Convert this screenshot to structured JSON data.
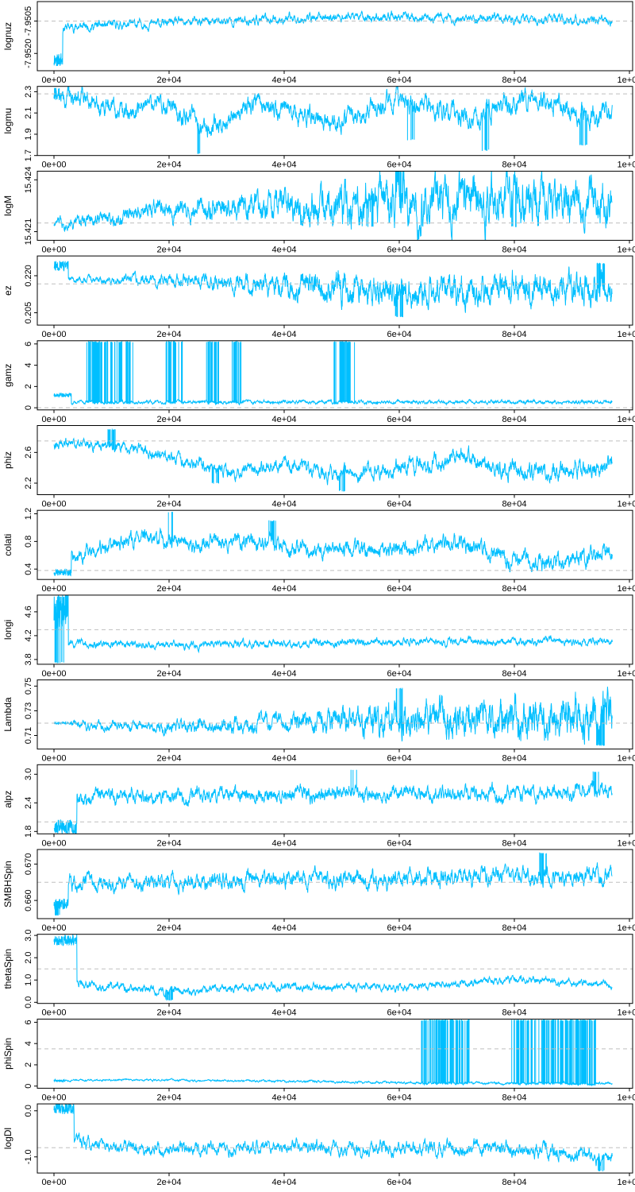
{
  "colors": {
    "trace": "#00bfff",
    "reference": "#bfbfbf",
    "frame": "#000000"
  },
  "x_axis": {
    "range": [
      0,
      97000
    ],
    "ticks": [
      0,
      20000,
      40000,
      60000,
      80000,
      100000
    ],
    "tick_labels": [
      "0e+00",
      "2e+04",
      "4e+04",
      "6e+04",
      "8e+04",
      "1e+05"
    ]
  },
  "chart_data": [
    {
      "type": "line",
      "ylabel": "lognuz",
      "ylim": [
        -7.9528,
        -7.9496
      ],
      "yticks": [
        -7.952,
        -7.9505
      ],
      "ytick_labels": [
        "-7.9520",
        "-7.9505"
      ],
      "reference": -7.9505,
      "warmup": {
        "end": 1500,
        "start": -7.9523,
        "amp": 0.0003
      },
      "seed": 11,
      "levels": [
        [
          0,
          -7.9508
        ],
        [
          30000,
          -7.9505
        ],
        [
          50000,
          -7.9503
        ],
        [
          97000,
          -7.9505
        ]
      ],
      "amp": [
        [
          0,
          0.0002
        ],
        [
          97000,
          0.0002
        ]
      ],
      "low": [],
      "high": []
    },
    {
      "type": "line",
      "ylabel": "logmu",
      "ylim": [
        1.7,
        2.35
      ],
      "yticks": [
        1.7,
        1.9,
        2.1,
        2.3
      ],
      "ytick_labels": [
        "1.7",
        "1.9",
        "2.1",
        "2.3"
      ],
      "reference": 2.28,
      "warmup": null,
      "seed": 22,
      "levels": [
        [
          0,
          2.26
        ],
        [
          6000,
          2.26
        ],
        [
          12000,
          2.1
        ],
        [
          18000,
          2.2
        ],
        [
          27000,
          1.95
        ],
        [
          35000,
          2.2
        ],
        [
          50000,
          2.0
        ],
        [
          60000,
          2.25
        ],
        [
          72000,
          2.05
        ],
        [
          82000,
          2.25
        ],
        [
          92000,
          2.1
        ],
        [
          97000,
          2.05
        ]
      ],
      "amp": [
        [
          0,
          0.08
        ],
        [
          97000,
          0.1
        ]
      ],
      "low": [
        [
          25000,
          1.72,
          0.03
        ],
        [
          62000,
          1.85,
          0.02
        ],
        [
          75000,
          1.75,
          0.03
        ],
        [
          92000,
          1.8,
          0.02
        ]
      ],
      "high": [
        [
          0,
          2.33,
          0.3
        ]
      ]
    },
    {
      "type": "line",
      "ylabel": "logM",
      "ylim": [
        15.4205,
        15.4245
      ],
      "yticks": [
        15.421,
        15.424
      ],
      "ytick_labels": [
        "15.421",
        "15.424"
      ],
      "reference": 15.4215,
      "warmup": null,
      "seed": 33,
      "levels": [
        [
          0,
          15.4215
        ],
        [
          20000,
          15.4222
        ],
        [
          40000,
          15.4225
        ],
        [
          60000,
          15.4228
        ],
        [
          97000,
          15.4226
        ]
      ],
      "amp": [
        [
          0,
          0.0003
        ],
        [
          40000,
          0.0008
        ],
        [
          60000,
          0.0014
        ],
        [
          97000,
          0.0012
        ]
      ],
      "low": [
        [
          55000,
          15.4213,
          0.06
        ],
        [
          80000,
          15.4213,
          0.06
        ]
      ],
      "high": [
        [
          60000,
          15.4245,
          0.04
        ]
      ]
    },
    {
      "type": "line",
      "ylabel": "ez",
      "ylim": [
        0.2,
        0.228
      ],
      "yticks": [
        0.205,
        0.22
      ],
      "ytick_labels": [
        "0.205",
        "0.220"
      ],
      "reference": 0.2167,
      "warmup": {
        "end": 2500,
        "start": 0.224,
        "amp": 0.002
      },
      "seed": 44,
      "levels": [
        [
          0,
          0.2185
        ],
        [
          20000,
          0.218
        ],
        [
          40000,
          0.2155
        ],
        [
          60000,
          0.2145
        ],
        [
          97000,
          0.215
        ]
      ],
      "amp": [
        [
          0,
          0.001
        ],
        [
          30000,
          0.003
        ],
        [
          50000,
          0.006
        ],
        [
          97000,
          0.006
        ]
      ],
      "low": [
        [
          60000,
          0.2035,
          0.05
        ]
      ],
      "high": [
        [
          95000,
          0.225,
          0.05
        ]
      ]
    },
    {
      "type": "line",
      "ylabel": "gamz",
      "ylim": [
        -0.2,
        6.3
      ],
      "yticks": [
        0,
        2,
        4,
        6
      ],
      "ytick_labels": [
        "0",
        "2",
        "4",
        "6"
      ],
      "reference": 0,
      "warmup": {
        "end": 3000,
        "start": 1.2,
        "amp": 0.2
      },
      "seed": 55,
      "levels": [
        [
          0,
          0.5
        ],
        [
          97000,
          0.55
        ]
      ],
      "amp": [
        [
          0,
          0.15
        ],
        [
          97000,
          0.15
        ]
      ],
      "low": [],
      "high": [
        [
          7000,
          6.2,
          0.5
        ],
        [
          8000,
          6.2,
          0.5
        ],
        [
          10500,
          6.2,
          0.5
        ],
        [
          12500,
          6.2,
          0.5
        ],
        [
          20000,
          6.2,
          0.5
        ],
        [
          21000,
          6.2,
          0.5
        ],
        [
          27500,
          6.2,
          0.4
        ],
        [
          32000,
          6.2,
          0.3
        ],
        [
          50000,
          6.2,
          0.5
        ],
        [
          51000,
          6.2,
          0.5
        ]
      ]
    },
    {
      "type": "line",
      "ylabel": "phiz",
      "ylim": [
        2.05,
        2.95
      ],
      "yticks": [
        2.2,
        2.6
      ],
      "ytick_labels": [
        "2.2",
        "2.6"
      ],
      "reference": 2.75,
      "warmup": null,
      "seed": 66,
      "levels": [
        [
          0,
          2.72
        ],
        [
          10000,
          2.7
        ],
        [
          20000,
          2.55
        ],
        [
          30000,
          2.35
        ],
        [
          40000,
          2.45
        ],
        [
          50000,
          2.3
        ],
        [
          60000,
          2.4
        ],
        [
          72000,
          2.55
        ],
        [
          80000,
          2.35
        ],
        [
          97000,
          2.4
        ]
      ],
      "amp": [
        [
          0,
          0.06
        ],
        [
          97000,
          0.12
        ]
      ],
      "low": [
        [
          50000,
          2.1,
          0.03
        ],
        [
          28000,
          2.2,
          0.03
        ]
      ],
      "high": [
        [
          10000,
          2.9,
          0.03
        ]
      ]
    },
    {
      "type": "line",
      "ylabel": "colati",
      "ylim": [
        0.25,
        1.25
      ],
      "yticks": [
        0.4,
        0.8,
        1.2
      ],
      "ytick_labels": [
        "0.4",
        "0.8",
        "1.2"
      ],
      "reference": 0.38,
      "warmup": {
        "end": 3000,
        "start": 0.35,
        "amp": 0.05
      },
      "seed": 77,
      "levels": [
        [
          0,
          0.5
        ],
        [
          5000,
          0.6
        ],
        [
          15000,
          0.85
        ],
        [
          25000,
          0.75
        ],
        [
          35000,
          0.8
        ],
        [
          45000,
          0.7
        ],
        [
          55000,
          0.65
        ],
        [
          70000,
          0.8
        ],
        [
          80000,
          0.5
        ],
        [
          90000,
          0.5
        ],
        [
          97000,
          0.65
        ]
      ],
      "amp": [
        [
          0,
          0.1
        ],
        [
          97000,
          0.12
        ]
      ],
      "low": [],
      "high": [
        [
          20000,
          1.22,
          0.05
        ],
        [
          38000,
          1.1,
          0.05
        ]
      ]
    },
    {
      "type": "line",
      "ylabel": "longi",
      "ylim": [
        3.72,
        4.88
      ],
      "yticks": [
        3.8,
        4.2,
        4.6
      ],
      "ytick_labels": [
        "3.8",
        "4.2",
        "4.6"
      ],
      "reference": 4.3,
      "warmup": {
        "end": 2500,
        "start": 4.6,
        "amp": 0.3
      },
      "seed": 88,
      "levels": [
        [
          0,
          4.05
        ],
        [
          20000,
          4.05
        ],
        [
          40000,
          4.05
        ],
        [
          60000,
          4.1
        ],
        [
          80000,
          4.1
        ],
        [
          97000,
          4.1
        ]
      ],
      "amp": [
        [
          0,
          0.06
        ],
        [
          97000,
          0.06
        ]
      ],
      "low": [
        [
          1000,
          3.75,
          0.2
        ]
      ],
      "high": [
        [
          1500,
          4.85,
          0.2
        ]
      ]
    },
    {
      "type": "line",
      "ylabel": "Lambda",
      "ylim": [
        0.699,
        0.755
      ],
      "yticks": [
        0.71,
        0.73,
        0.75
      ],
      "ytick_labels": [
        "0.71",
        "0.73",
        "0.75"
      ],
      "reference": 0.72,
      "warmup": {
        "end": 3000,
        "start": 0.72,
        "amp": 0.001
      },
      "seed": 99,
      "levels": [
        [
          0,
          0.72
        ],
        [
          20000,
          0.717
        ],
        [
          40000,
          0.72
        ],
        [
          60000,
          0.725
        ],
        [
          97000,
          0.722
        ]
      ],
      "amp": [
        [
          0,
          0.003
        ],
        [
          40000,
          0.007
        ],
        [
          60000,
          0.013
        ],
        [
          97000,
          0.018
        ]
      ],
      "low": [
        [
          95000,
          0.702,
          0.08
        ]
      ],
      "high": [
        [
          60000,
          0.748,
          0.06
        ]
      ]
    },
    {
      "type": "line",
      "ylabel": "alpz",
      "ylim": [
        1.75,
        3.2
      ],
      "yticks": [
        1.8,
        2.4,
        3.0
      ],
      "ytick_labels": [
        "1.8",
        "2.4",
        "3.0"
      ],
      "reference": 2.0,
      "warmup": {
        "end": 4000,
        "start": 1.9,
        "amp": 0.15
      },
      "seed": 111,
      "levels": [
        [
          0,
          2.3
        ],
        [
          8000,
          2.55
        ],
        [
          20000,
          2.55
        ],
        [
          40000,
          2.6
        ],
        [
          60000,
          2.6
        ],
        [
          80000,
          2.6
        ],
        [
          97000,
          2.65
        ]
      ],
      "amp": [
        [
          0,
          0.15
        ],
        [
          97000,
          0.15
        ]
      ],
      "low": [
        [
          0,
          1.8,
          0.3
        ]
      ],
      "high": [
        [
          52000,
          3.1,
          0.04
        ],
        [
          94000,
          3.05,
          0.04
        ]
      ]
    },
    {
      "type": "line",
      "ylabel": "SMBHSpin",
      "ylim": [
        0.655,
        0.674
      ],
      "yticks": [
        0.66,
        0.67
      ],
      "ytick_labels": [
        "0.660",
        "0.670"
      ],
      "reference": 0.665,
      "warmup": {
        "end": 2500,
        "start": 0.659,
        "amp": 0.0015
      },
      "seed": 122,
      "levels": [
        [
          0,
          0.665
        ],
        [
          20000,
          0.665
        ],
        [
          40000,
          0.666
        ],
        [
          60000,
          0.666
        ],
        [
          80000,
          0.667
        ],
        [
          97000,
          0.666
        ]
      ],
      "amp": [
        [
          0,
          0.002
        ],
        [
          97000,
          0.0025
        ]
      ],
      "low": [
        [
          0,
          0.656,
          0.3
        ]
      ],
      "high": [
        [
          85000,
          0.673,
          0.04
        ]
      ]
    },
    {
      "type": "line",
      "ylabel": "thetaSpin",
      "ylim": [
        -0.05,
        3.05
      ],
      "yticks": [
        0.0,
        1.0,
        2.0,
        3.0
      ],
      "ytick_labels": [
        "0.0",
        "1.0",
        "2.0",
        "3.0"
      ],
      "reference": 1.5,
      "warmup": {
        "end": 4000,
        "start": 2.8,
        "amp": 0.25
      },
      "seed": 133,
      "levels": [
        [
          0,
          1.2
        ],
        [
          5000,
          0.8
        ],
        [
          20000,
          0.5
        ],
        [
          40000,
          0.7
        ],
        [
          60000,
          0.7
        ],
        [
          80000,
          1.0
        ],
        [
          97000,
          0.8
        ]
      ],
      "amp": [
        [
          0,
          0.18
        ],
        [
          97000,
          0.15
        ]
      ],
      "low": [
        [
          20000,
          0.1,
          0.05
        ]
      ],
      "high": []
    },
    {
      "type": "line",
      "ylabel": "phiSpin",
      "ylim": [
        -0.2,
        6.3
      ],
      "yticks": [
        0,
        2,
        4,
        6
      ],
      "ytick_labels": [
        "0",
        "2",
        "4",
        "6"
      ],
      "reference": 3.5,
      "warmup": {
        "end": 2000,
        "start": 0.5,
        "amp": 0.1
      },
      "seed": 144,
      "levels": [
        [
          0,
          0.5
        ],
        [
          10000,
          0.6
        ],
        [
          40000,
          0.45
        ],
        [
          65000,
          0.3
        ],
        [
          97000,
          0.25
        ]
      ],
      "amp": [
        [
          0,
          0.08
        ],
        [
          97000,
          0.12
        ]
      ],
      "low": [],
      "high": [
        [
          65000,
          6.2,
          0.4
        ],
        [
          67000,
          6.2,
          0.4
        ],
        [
          68000,
          6.2,
          0.4
        ],
        [
          69500,
          6.2,
          0.4
        ],
        [
          71000,
          6.2,
          0.4
        ],
        [
          80500,
          6.2,
          0.4
        ],
        [
          82000,
          6.2,
          0.4
        ],
        [
          84500,
          6.2,
          0.4
        ],
        [
          86000,
          6.2,
          0.4
        ],
        [
          87500,
          6.2,
          0.4
        ],
        [
          88500,
          6.2,
          0.4
        ],
        [
          90000,
          6.2,
          0.4
        ],
        [
          91500,
          6.2,
          0.4
        ],
        [
          93000,
          6.2,
          0.4
        ]
      ]
    },
    {
      "type": "line",
      "ylabel": "logDl",
      "ylim": [
        -1.35,
        0.15
      ],
      "yticks": [
        -1.0,
        0.0
      ],
      "ytick_labels": [
        "-1.0",
        "0.0"
      ],
      "reference": -0.8,
      "warmup": {
        "end": 3500,
        "start": 0.05,
        "amp": 0.12
      },
      "seed": 155,
      "levels": [
        [
          0,
          -0.3
        ],
        [
          5000,
          -0.7
        ],
        [
          20000,
          -0.85
        ],
        [
          40000,
          -0.75
        ],
        [
          60000,
          -0.85
        ],
        [
          80000,
          -0.8
        ],
        [
          90000,
          -0.95
        ],
        [
          97000,
          -1.0
        ]
      ],
      "amp": [
        [
          0,
          0.12
        ],
        [
          97000,
          0.15
        ]
      ],
      "low": [
        [
          95000,
          -1.3,
          0.05
        ]
      ],
      "high": [
        [
          0,
          0.1,
          0.3
        ]
      ]
    }
  ]
}
